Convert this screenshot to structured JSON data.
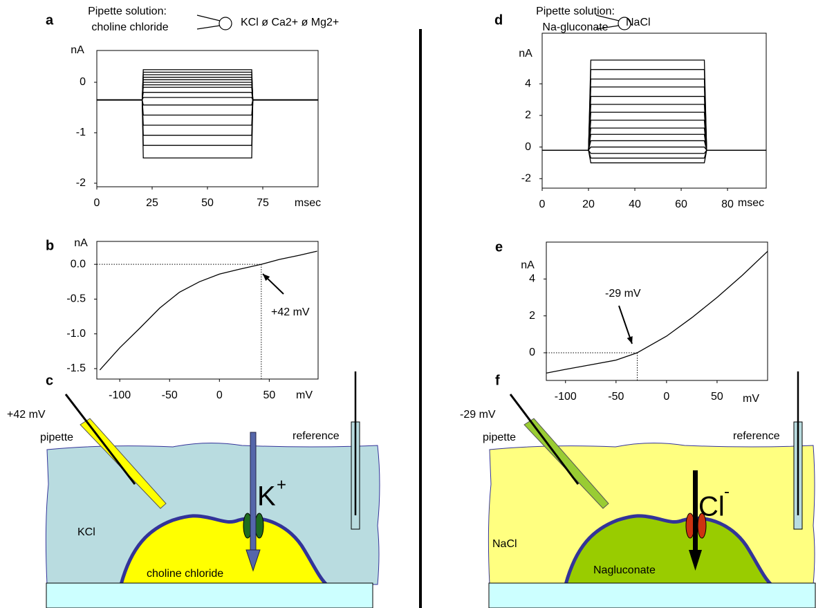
{
  "chart_data": [
    {
      "type": "line",
      "label": "a",
      "y_label": "nA",
      "x_label": "msec",
      "color": "#000000",
      "x": [
        0,
        20.5,
        21,
        70,
        70.5,
        100
      ],
      "series": [
        {
          "values": [
            -0.35,
            -0.35,
            0.25,
            0.25,
            -0.35,
            -0.35
          ]
        },
        {
          "values": [
            -0.35,
            -0.35,
            0.2,
            0.2,
            -0.35,
            -0.35
          ]
        },
        {
          "values": [
            -0.35,
            -0.35,
            0.15,
            0.15,
            -0.35,
            -0.35
          ]
        },
        {
          "values": [
            -0.35,
            -0.35,
            0.1,
            0.1,
            -0.35,
            -0.35
          ]
        },
        {
          "values": [
            -0.35,
            -0.35,
            0.05,
            0.05,
            -0.35,
            -0.35
          ]
        },
        {
          "values": [
            -0.35,
            -0.35,
            0,
            0,
            -0.35,
            -0.35
          ]
        },
        {
          "values": [
            -0.35,
            -0.35,
            -0.05,
            -0.05,
            -0.35,
            -0.35
          ]
        },
        {
          "values": [
            -0.35,
            -0.35,
            -0.1,
            -0.1,
            -0.35,
            -0.35
          ]
        },
        {
          "values": [
            -0.35,
            -0.35,
            -0.2,
            -0.2,
            -0.35,
            -0.35
          ]
        },
        {
          "values": [
            -0.35,
            -0.35,
            -0.3,
            -0.3,
            -0.35,
            -0.35
          ]
        },
        {
          "values": [
            -0.35,
            -0.35,
            -0.45,
            -0.45,
            -0.35,
            -0.35
          ]
        },
        {
          "values": [
            -0.35,
            -0.35,
            -0.65,
            -0.65,
            -0.35,
            -0.35
          ]
        },
        {
          "values": [
            -0.35,
            -0.35,
            -0.85,
            -0.85,
            -0.35,
            -0.35
          ]
        },
        {
          "values": [
            -0.35,
            -0.35,
            -1.05,
            -1.05,
            -0.35,
            -0.35
          ]
        },
        {
          "values": [
            -0.35,
            -0.35,
            -1.25,
            -1.25,
            -0.35,
            -0.35
          ]
        },
        {
          "values": [
            -0.35,
            -0.35,
            -1.5,
            -1.5,
            -0.35,
            -0.35
          ]
        }
      ],
      "xlim": [
        0,
        100
      ],
      "ylim": [
        -2.07,
        0.63
      ],
      "xticks": [
        0,
        25,
        50,
        75
      ],
      "yticks": [
        -2,
        -1,
        0
      ]
    },
    {
      "type": "line",
      "label": "b",
      "y_label": "nA",
      "x_label": "mV",
      "color": "#000000",
      "x": [
        -120,
        -100,
        -80,
        -60,
        -40,
        -20,
        0,
        20,
        42,
        60,
        80,
        98
      ],
      "values": [
        -1.52,
        -1.2,
        -0.92,
        -0.63,
        -0.4,
        -0.25,
        -0.14,
        -0.07,
        0,
        0.07,
        0.13,
        0.19
      ],
      "annotation": {
        "value": 42,
        "label": "+42 mV"
      },
      "xlim": [
        -123,
        99
      ],
      "ylim": [
        -1.65,
        0.33
      ],
      "xticks": [
        -100,
        -50,
        0,
        50
      ],
      "yticks": [
        {
          "value": 0,
          "label": "0.0"
        },
        {
          "value": -0.5,
          "label": "-0.5"
        },
        {
          "value": -1,
          "label": "-1.0"
        },
        {
          "value": -1.5,
          "label": "-1.5"
        }
      ]
    },
    {
      "type": "line",
      "label": "d",
      "y_label": "nA",
      "x_label": "msec",
      "color": "#000000",
      "x": [
        0,
        20,
        21,
        70,
        71,
        96.7
      ],
      "series": [
        {
          "values": [
            -0.2,
            -0.2,
            5.5,
            5.5,
            -0.2,
            -0.2
          ]
        },
        {
          "values": [
            -0.2,
            -0.2,
            4.9,
            4.9,
            -0.2,
            -0.2
          ]
        },
        {
          "values": [
            -0.2,
            -0.2,
            4.3,
            4.3,
            -0.2,
            -0.2
          ]
        },
        {
          "values": [
            -0.2,
            -0.2,
            3.8,
            3.8,
            -0.2,
            -0.2
          ]
        },
        {
          "values": [
            -0.2,
            -0.2,
            3.2,
            3.2,
            -0.2,
            -0.2
          ]
        },
        {
          "values": [
            -0.2,
            -0.2,
            2.7,
            2.7,
            -0.2,
            -0.2
          ]
        },
        {
          "values": [
            -0.2,
            -0.2,
            2.2,
            2.2,
            -0.2,
            -0.2
          ]
        },
        {
          "values": [
            -0.2,
            -0.2,
            1.7,
            1.7,
            -0.2,
            -0.2
          ]
        },
        {
          "values": [
            -0.2,
            -0.2,
            1.2,
            1.2,
            -0.2,
            -0.2
          ]
        },
        {
          "values": [
            -0.2,
            -0.2,
            0.8,
            0.8,
            -0.2,
            -0.2
          ]
        },
        {
          "values": [
            -0.2,
            -0.2,
            0.4,
            0.4,
            -0.2,
            -0.2
          ]
        },
        {
          "values": [
            -0.2,
            -0.2,
            0,
            0,
            -0.2,
            -0.2
          ]
        },
        {
          "values": [
            -0.2,
            -0.2,
            -0.4,
            -0.4,
            -0.2,
            -0.2
          ]
        },
        {
          "values": [
            -0.2,
            -0.2,
            -0.7,
            -0.7,
            -0.2,
            -0.2
          ]
        },
        {
          "values": [
            -0.2,
            -0.2,
            -1,
            -1,
            -0.2,
            -0.2
          ]
        }
      ],
      "xlim": [
        0,
        96.7
      ],
      "ylim": [
        -2.6,
        7.2
      ],
      "xticks": [
        0,
        20,
        40,
        60,
        80
      ],
      "yticks": [
        -2,
        0,
        2,
        4
      ]
    },
    {
      "type": "line",
      "label": "e",
      "y_label": "nA",
      "x_label": "mV",
      "color": "#000000",
      "x": [
        -119,
        -100,
        -75,
        -50,
        -29,
        0,
        25,
        50,
        75,
        100
      ],
      "values": [
        -1.1,
        -0.9,
        -0.65,
        -0.4,
        0,
        0.9,
        1.9,
        3,
        4.2,
        5.5
      ],
      "annotation": {
        "value": -29,
        "label": "-29 mV"
      },
      "xlim": [
        -119,
        100
      ],
      "ylim": [
        -1.5,
        6
      ],
      "xticks": [
        -100,
        -50,
        0,
        50
      ],
      "yticks": [
        0,
        2,
        4
      ]
    }
  ],
  "pipette_headers": [
    {
      "title": "Pipette solution:",
      "pipette": "choline chloride",
      "bath": "KCl ø Ca2+ ø Mg2+"
    },
    {
      "title": "Pipette solution:",
      "pipette": "Na-gluconate",
      "bath": "NaCl"
    }
  ],
  "diagrams": [
    {
      "label": "c",
      "potential": "+42 mV",
      "pipette": "pipette",
      "reference": "reference",
      "bath": "KCl",
      "cell": "choline chloride",
      "ion": {
        "symbol": "K",
        "charge": "+"
      }
    },
    {
      "label": "f",
      "potential": "-29 mV",
      "pipette": "pipette",
      "reference": "reference",
      "bath": "NaCl",
      "cell": "Nagluconate",
      "ion": {
        "symbol": "Cl",
        "charge": "-"
      }
    }
  ]
}
